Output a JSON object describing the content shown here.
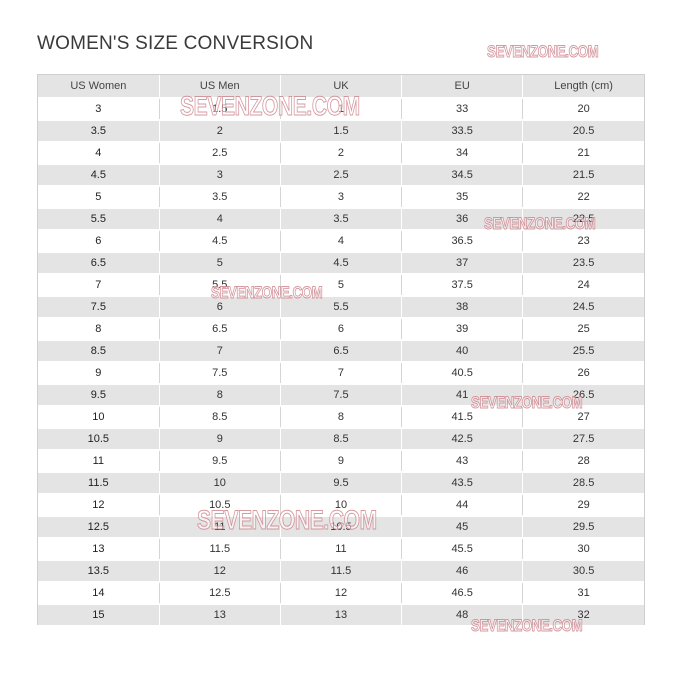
{
  "title": "WOMEN'S SIZE CONVERSION",
  "watermark": "SEVENZONE.COM",
  "table": {
    "headers": [
      "US Women",
      "US Men",
      "UK",
      "EU",
      "Length (cm)"
    ],
    "rows": [
      [
        "3",
        "1.5",
        "1",
        "33",
        "20"
      ],
      [
        "3.5",
        "2",
        "1.5",
        "33.5",
        "20.5"
      ],
      [
        "4",
        "2.5",
        "2",
        "34",
        "21"
      ],
      [
        "4.5",
        "3",
        "2.5",
        "34.5",
        "21.5"
      ],
      [
        "5",
        "3.5",
        "3",
        "35",
        "22"
      ],
      [
        "5.5",
        "4",
        "3.5",
        "36",
        "22.5"
      ],
      [
        "6",
        "4.5",
        "4",
        "36.5",
        "23"
      ],
      [
        "6.5",
        "5",
        "4.5",
        "37",
        "23.5"
      ],
      [
        "7",
        "5.5",
        "5",
        "37.5",
        "24"
      ],
      [
        "7.5",
        "6",
        "5.5",
        "38",
        "24.5"
      ],
      [
        "8",
        "6.5",
        "6",
        "39",
        "25"
      ],
      [
        "8.5",
        "7",
        "6.5",
        "40",
        "25.5"
      ],
      [
        "9",
        "7.5",
        "7",
        "40.5",
        "26"
      ],
      [
        "9.5",
        "8",
        "7.5",
        "41",
        "26.5"
      ],
      [
        "10",
        "8.5",
        "8",
        "41.5",
        "27"
      ],
      [
        "10.5",
        "9",
        "8.5",
        "42.5",
        "27.5"
      ],
      [
        "11",
        "9.5",
        "9",
        "43",
        "28"
      ],
      [
        "11.5",
        "10",
        "9.5",
        "43.5",
        "28.5"
      ],
      [
        "12",
        "10.5",
        "10",
        "44",
        "29"
      ],
      [
        "12.5",
        "11",
        "10.5",
        "45",
        "29.5"
      ],
      [
        "13",
        "11.5",
        "11",
        "45.5",
        "30"
      ],
      [
        "13.5",
        "12",
        "11.5",
        "46",
        "30.5"
      ],
      [
        "14",
        "12.5",
        "12",
        "46.5",
        "31"
      ],
      [
        "15",
        "13",
        "13",
        "48",
        "32"
      ]
    ]
  },
  "colors": {
    "stripe": "#e4e4e4",
    "text": "#333333",
    "watermark_outline": "#c87882"
  }
}
